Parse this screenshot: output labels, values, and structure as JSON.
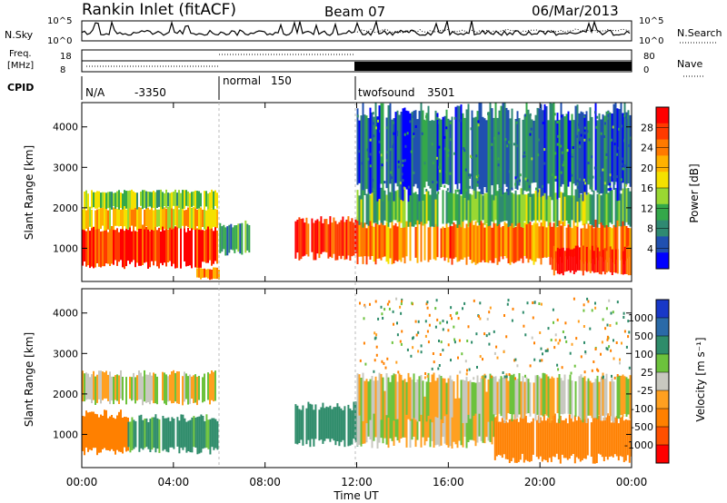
{
  "header": {
    "station": "Rankin Inlet (fitACF)",
    "beam": "Beam 07",
    "date": "06/Mar/2013"
  },
  "noise_panel": {
    "left_label": "N.Sky",
    "right_label": "N.Search",
    "left_ticks": [
      "10^5",
      "10^0"
    ],
    "right_ticks": [
      "10^5",
      "10^0"
    ]
  },
  "freq_panel": {
    "left_label_1": "Freq.",
    "left_label_2": "[MHz]",
    "left_ticks": [
      "18",
      "8"
    ],
    "right_label": "Nave",
    "right_ticks": [
      "80",
      "0"
    ]
  },
  "cpid": {
    "label": "CPID",
    "segments": [
      {
        "name": "N/A",
        "id": "-3350",
        "start_hour": 0
      },
      {
        "name": "normal",
        "id": "150",
        "start_hour": 6
      },
      {
        "name": "twofsound",
        "id": "3501",
        "start_hour": 12
      }
    ]
  },
  "power_colorbar": {
    "label": "Power [dB]",
    "ticks": [
      "28",
      "24",
      "20",
      "16",
      "12",
      "8",
      "4"
    ],
    "colors": [
      "#ff0000",
      "#ff3a00",
      "#ff7a00",
      "#ffb200",
      "#f5e100",
      "#9ad832",
      "#34a84a",
      "#2f8a72",
      "#2050b0",
      "#0000ff"
    ]
  },
  "velocity_colorbar": {
    "label": "Velocity [m s⁻¹]",
    "ticks": [
      "1000",
      "500",
      "100",
      "25",
      "-25",
      "-100",
      "-500",
      "-1000"
    ],
    "colors": [
      "#1838c8",
      "#2a6aa8",
      "#2e8c6a",
      "#6cc23c",
      "#c8c8c0",
      "#ffa020",
      "#ff8000",
      "#ff5000",
      "#ff0000"
    ]
  },
  "axes": {
    "x_ticks": [
      "00:00",
      "04:00",
      "08:00",
      "12:00",
      "16:00",
      "20:00",
      "00:00"
    ],
    "x_label": "Time UT",
    "y_label": "Slant Range [km]",
    "y_ticks": [
      "1000",
      "2000",
      "3000",
      "4000"
    ]
  },
  "chart_data": [
    {
      "type": "heatmap",
      "title": "Power",
      "xlabel": "Time UT",
      "ylabel": "Slant Range [km]",
      "xlim": [
        0,
        24
      ],
      "ylim": [
        180,
        4600
      ],
      "colorbar_label": "Power [dB]",
      "colorbar_range": [
        0,
        32
      ],
      "regions": [
        {
          "x": [
            0,
            5.9
          ],
          "y": [
            600,
            1500
          ],
          "value": 28
        },
        {
          "x": [
            0,
            5.9
          ],
          "y": [
            1500,
            2000
          ],
          "value": 20
        },
        {
          "x": [
            0,
            5.9
          ],
          "y": [
            2000,
            2400
          ],
          "value": 14
        },
        {
          "x": [
            5.0,
            6.0
          ],
          "y": [
            250,
            500
          ],
          "value": 24
        },
        {
          "x": [
            6.0,
            7.3
          ],
          "y": [
            900,
            1600
          ],
          "value": 10
        },
        {
          "x": [
            9.3,
            12.0
          ],
          "y": [
            800,
            1700
          ],
          "value": 28
        },
        {
          "x": [
            12.0,
            24.0
          ],
          "y": [
            700,
            1600
          ],
          "value": 24
        },
        {
          "x": [
            12.0,
            24.0
          ],
          "y": [
            1600,
            2400
          ],
          "value": 12
        },
        {
          "x": [
            12.0,
            24.0
          ],
          "y": [
            2400,
            4400
          ],
          "value": 6
        },
        {
          "x": [
            20.5,
            24.0
          ],
          "y": [
            400,
            1000
          ],
          "value": 28
        }
      ]
    },
    {
      "type": "heatmap",
      "title": "Velocity",
      "xlabel": "Time UT",
      "ylabel": "Slant Range [km]",
      "xlim": [
        0,
        24
      ],
      "ylim": [
        180,
        4600
      ],
      "colorbar_label": "Velocity [m s⁻¹]",
      "colorbar_range": [
        -1000,
        1000
      ],
      "regions": [
        {
          "x": [
            0,
            5.9
          ],
          "y": [
            1800,
            2500
          ],
          "value": 0
        },
        {
          "x": [
            0,
            2.0
          ],
          "y": [
            600,
            1500
          ],
          "value": -200
        },
        {
          "x": [
            2.0,
            5.9
          ],
          "y": [
            600,
            1400
          ],
          "value": 150
        },
        {
          "x": [
            9.3,
            12.0
          ],
          "y": [
            800,
            1700
          ],
          "value": 200
        },
        {
          "x": [
            12.0,
            18.0
          ],
          "y": [
            800,
            2000
          ],
          "value": 0
        },
        {
          "x": [
            18.0,
            24.0
          ],
          "y": [
            400,
            1400
          ],
          "value": -200
        },
        {
          "x": [
            12.0,
            24.0
          ],
          "y": [
            1400,
            2400
          ],
          "value": 0
        }
      ]
    }
  ]
}
